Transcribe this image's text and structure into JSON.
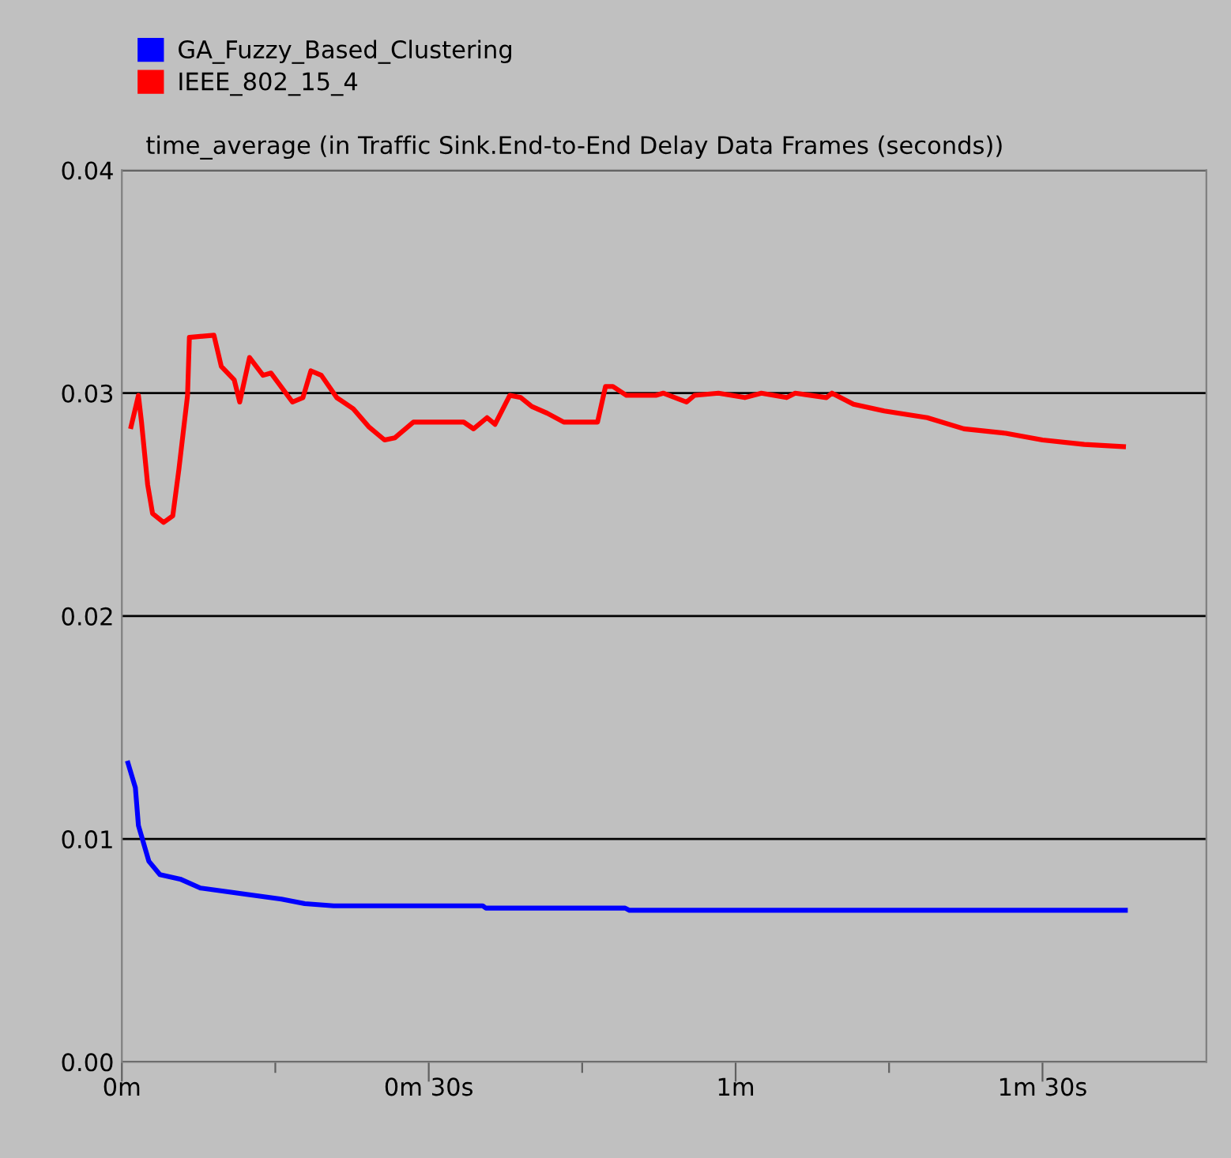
{
  "chart_data": {
    "type": "line",
    "title": "time_average (in Traffic Sink.End-to-End Delay Data Frames (seconds))",
    "series": [
      {
        "name": "GA_Fuzzy_Based_Clustering",
        "color": "#0000ff",
        "x": [
          0.01,
          0.022,
          0.027,
          0.044,
          0.062,
          0.095,
          0.128,
          0.18,
          0.208,
          0.26,
          0.298,
          0.345,
          0.588,
          0.593,
          0.82,
          0.827,
          1.635
        ],
        "values": [
          0.0134,
          0.0123,
          0.0106,
          0.009,
          0.0084,
          0.0082,
          0.0078,
          0.0076,
          0.0075,
          0.0073,
          0.0071,
          0.007,
          0.007,
          0.0069,
          0.0069,
          0.0068,
          0.0068
        ]
      },
      {
        "name": "IEEE_802_15_4",
        "color": "#ff0000",
        "x": [
          0.015,
          0.027,
          0.032,
          0.042,
          0.05,
          0.068,
          0.083,
          0.093,
          0.107,
          0.11,
          0.15,
          0.162,
          0.183,
          0.192,
          0.208,
          0.23,
          0.243,
          0.278,
          0.295,
          0.308,
          0.325,
          0.35,
          0.377,
          0.402,
          0.428,
          0.445,
          0.475,
          0.557,
          0.573,
          0.595,
          0.608,
          0.632,
          0.65,
          0.668,
          0.693,
          0.72,
          0.775,
          0.788,
          0.8,
          0.822,
          0.87,
          0.882,
          0.92,
          0.933,
          0.972,
          1.015,
          1.042,
          1.083,
          1.097,
          1.148,
          1.157,
          1.192,
          1.242,
          1.312,
          1.372,
          1.44,
          1.5,
          1.568,
          1.632
        ],
        "values": [
          0.0285,
          0.0299,
          0.0287,
          0.0259,
          0.0246,
          0.0242,
          0.0245,
          0.0266,
          0.0299,
          0.0325,
          0.0326,
          0.0312,
          0.0306,
          0.0296,
          0.0316,
          0.0308,
          0.0309,
          0.0296,
          0.0298,
          0.031,
          0.0308,
          0.0298,
          0.0293,
          0.0285,
          0.0279,
          0.028,
          0.0287,
          0.0287,
          0.0284,
          0.0289,
          0.0286,
          0.0299,
          0.0298,
          0.0294,
          0.0291,
          0.0287,
          0.0287,
          0.0303,
          0.0303,
          0.0299,
          0.0299,
          0.03,
          0.0296,
          0.0299,
          0.03,
          0.0298,
          0.03,
          0.0298,
          0.03,
          0.0298,
          0.03,
          0.0295,
          0.0292,
          0.0289,
          0.0284,
          0.0282,
          0.0279,
          0.0277,
          0.0276
        ]
      }
    ],
    "xlim": [
      0,
      1.767
    ],
    "xticks": [
      {
        "value": 0,
        "label": "0m"
      },
      {
        "value": 0.25,
        "label": null
      },
      {
        "value": 0.5,
        "label": "0m 30s"
      },
      {
        "value": 0.75,
        "label": null
      },
      {
        "value": 1,
        "label": "1m"
      },
      {
        "value": 1.25,
        "label": null
      },
      {
        "value": 1.5,
        "label": "1m 30s"
      }
    ],
    "ylim": [
      0,
      0.04
    ],
    "yticks": [
      {
        "value": 0,
        "label": "0.00"
      },
      {
        "value": 0.01,
        "label": "0.01"
      },
      {
        "value": 0.02,
        "label": "0.02"
      },
      {
        "value": 0.03,
        "label": "0.03"
      },
      {
        "value": 0.04,
        "label": "0.04"
      }
    ],
    "grid": "y",
    "legend": "top left",
    "marker": "none",
    "line_style": "solid"
  }
}
